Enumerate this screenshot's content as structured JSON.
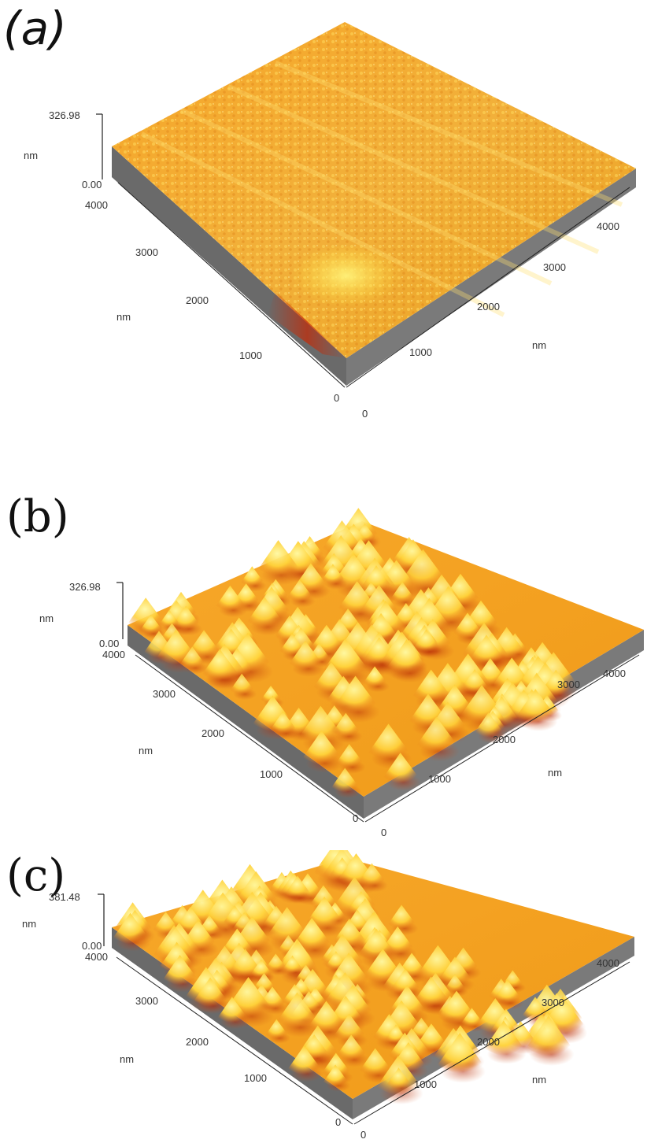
{
  "panels": [
    {
      "id": "a",
      "label": "(a)",
      "z_max": "326.98",
      "z_min": "0.00",
      "z_unit": "nm",
      "y_ticks": [
        "4000",
        "3000",
        "2000",
        "1000",
        "0"
      ],
      "y_unit": "nm",
      "x_ticks": [
        "0",
        "1000",
        "2000",
        "3000",
        "4000"
      ],
      "x_unit": "nm",
      "surface": "smooth granular film",
      "colors": {
        "base": "#f0a020",
        "highlight": "#ffe64a",
        "shadow": "#c83a08",
        "wall": "#6e6e6e"
      }
    },
    {
      "id": "b",
      "label": "(b)",
      "z_max": "326.98",
      "z_min": "0.00",
      "z_unit": "nm",
      "y_ticks": [
        "4000",
        "3000",
        "2000",
        "1000",
        "0"
      ],
      "y_unit": "nm",
      "x_ticks": [
        "0",
        "1000",
        "2000",
        "3000",
        "4000"
      ],
      "x_unit": "nm",
      "surface": "pyramidal islands",
      "colors": {
        "base": "#f49a18",
        "highlight": "#fff07a",
        "shadow": "#b82a04",
        "wall": "#6e6e6e"
      }
    },
    {
      "id": "c",
      "label": "(c)",
      "z_max": "381.48",
      "z_min": "0.00",
      "z_unit": "nm",
      "y_ticks": [
        "4000",
        "3000",
        "2000",
        "1000",
        "0"
      ],
      "y_unit": "nm",
      "x_ticks": [
        "0",
        "1000",
        "2000",
        "3000",
        "4000"
      ],
      "x_unit": "nm",
      "surface": "pyramidal islands",
      "colors": {
        "base": "#f49a18",
        "highlight": "#fff07a",
        "shadow": "#b82a04",
        "wall": "#6e6e6e"
      }
    }
  ]
}
